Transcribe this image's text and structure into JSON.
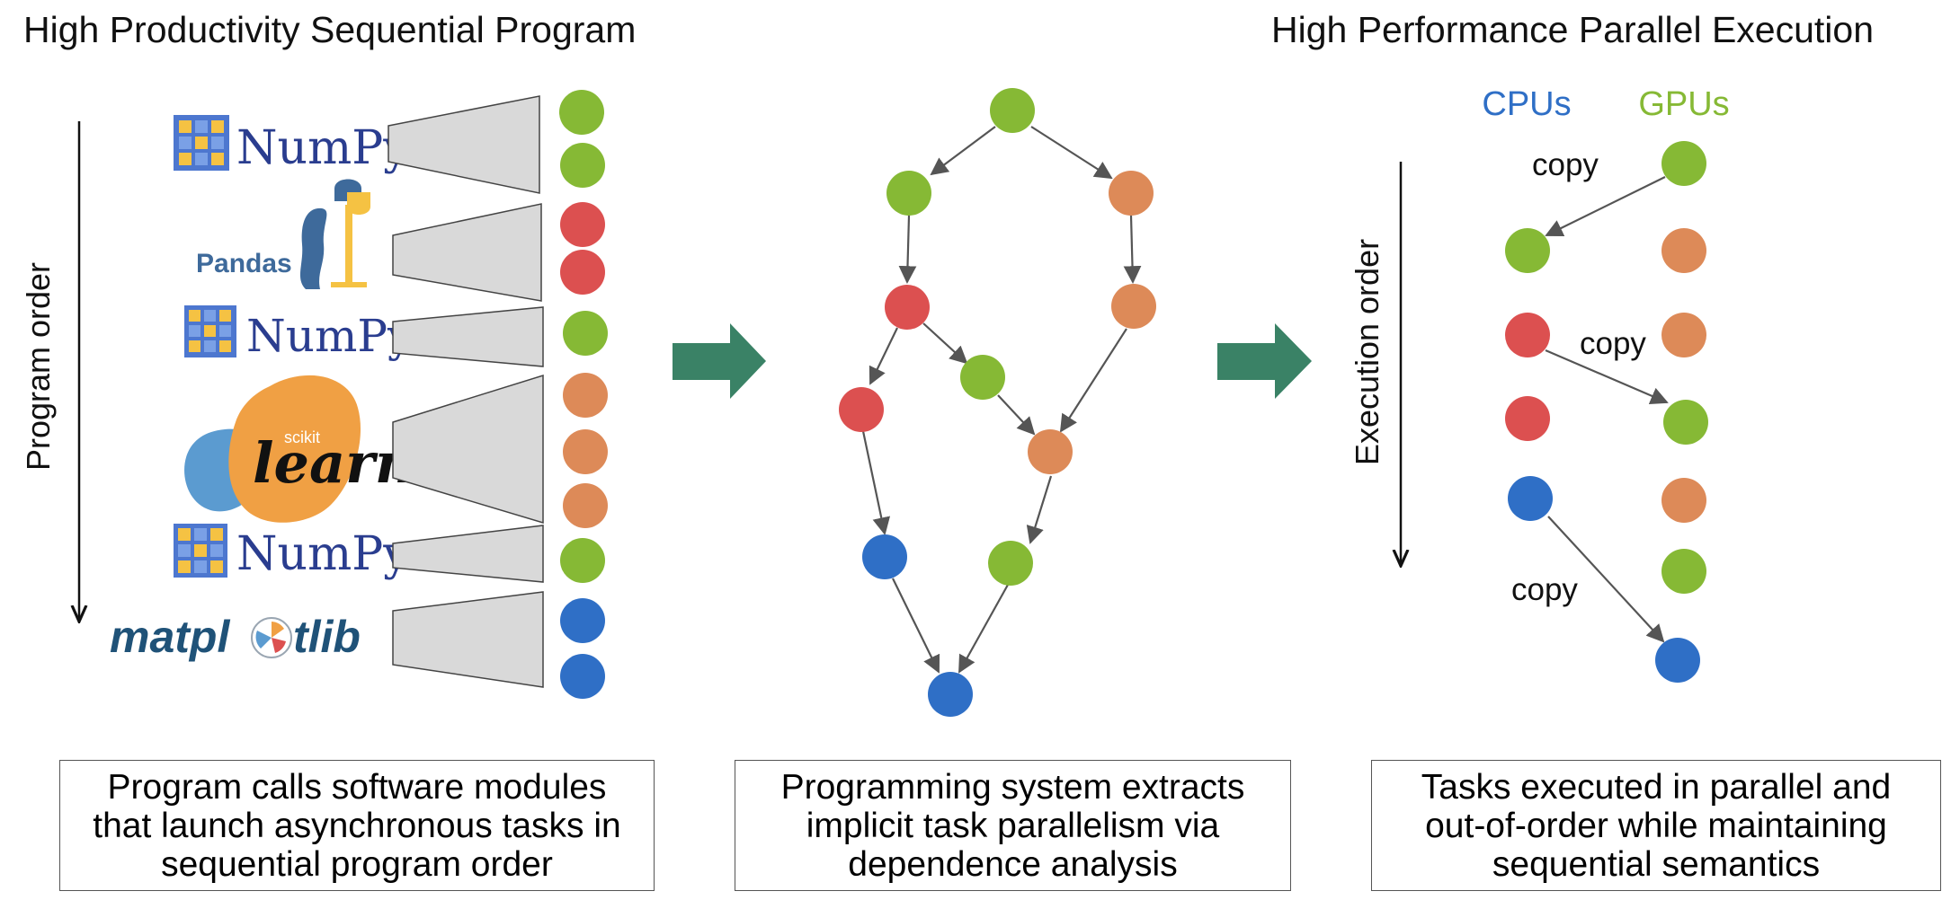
{
  "headings": {
    "left": "High Productivity Sequential Program",
    "right": "High Performance Parallel Execution"
  },
  "axes": {
    "program_order": "Program order",
    "execution_order": "Execution order"
  },
  "logos": {
    "numpy": "NumPy",
    "pandas": "Pandas",
    "sklearn_small": "scikit",
    "sklearn_big": "learn",
    "matplotlib_left": "matpl",
    "matplotlib_right": "tlib"
  },
  "columns": {
    "cpus": "CPUs",
    "gpus": "GPUs"
  },
  "copy_labels": [
    "copy",
    "copy",
    "copy"
  ],
  "captions": {
    "left": [
      "Program calls software modules",
      "that launch asynchronous tasks in",
      "sequential program order"
    ],
    "middle": [
      "Programming system extracts",
      "implicit task parallelism via",
      "dependence analysis"
    ],
    "right": [
      "Tasks executed in parallel and",
      "out-of-order while maintaining",
      "sequential semantics"
    ]
  },
  "colors": {
    "green": "#86b935",
    "red": "#dc5050",
    "orange": "#dd8a58",
    "blue": "#2f6fc6",
    "cpu_label": "#2f6fc6",
    "gpu_label": "#86b935",
    "arrow": "#3a8266",
    "trapezoid_fill": "#d9d9d9",
    "numpy_text": "#2a3d8f",
    "pandas_text": "#3e6a9b",
    "sklearn_orange": "#f0a044",
    "sklearn_blue": "#5b9bd0",
    "matplotlib_text": "#1f5278"
  }
}
